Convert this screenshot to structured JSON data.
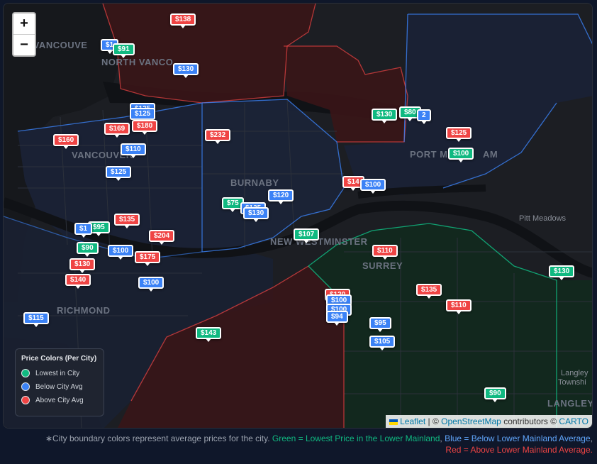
{
  "zoom": {
    "in_label": "+",
    "out_label": "−"
  },
  "places": [
    {
      "label": "WEST VANCOUVER",
      "text": "ST VANCOUVE"
    },
    {
      "label": "NORTH VANCOUVER",
      "text": "NORTH VANCO"
    },
    {
      "label": "VANCOUVER",
      "text": "VANCOUVER"
    },
    {
      "label": "BURNABY",
      "text": "BURNABY"
    },
    {
      "label": "PORT MOODY",
      "text": "PORT M"
    },
    {
      "label": "COQUITLAM",
      "text": "AM"
    },
    {
      "label": "NEW WESTMINSTER",
      "text": "NEW WESTMINSTER"
    },
    {
      "label": "SURREY",
      "text": "SURREY"
    },
    {
      "label": "RICHMOND",
      "text": "RICHMOND"
    },
    {
      "label": "Pitt Meadows",
      "text": "Pitt Meadows"
    },
    {
      "label": "Langley Township",
      "text": "Langley"
    },
    {
      "label": "Township",
      "text": "Townshi"
    },
    {
      "label": "LANGLEY",
      "text": "LANGLEY"
    }
  ],
  "markers": [
    {
      "price": "$138",
      "color": "red"
    },
    {
      "price": "$1",
      "color": "blue"
    },
    {
      "price": "$91",
      "color": "green"
    },
    {
      "price": "$130",
      "color": "blue"
    },
    {
      "price": "$125",
      "color": "blue"
    },
    {
      "price": "$125",
      "color": "blue"
    },
    {
      "price": "$169",
      "color": "red"
    },
    {
      "price": "$180",
      "color": "red"
    },
    {
      "price": "$160",
      "color": "red"
    },
    {
      "price": "$110",
      "color": "blue"
    },
    {
      "price": "$125",
      "color": "blue"
    },
    {
      "price": "$232",
      "color": "red"
    },
    {
      "price": "$130",
      "color": "green"
    },
    {
      "price": "$80",
      "color": "green"
    },
    {
      "price": "2",
      "color": "blue"
    },
    {
      "price": "$125",
      "color": "red"
    },
    {
      "price": "$100",
      "color": "green"
    },
    {
      "price": "$14",
      "color": "red"
    },
    {
      "price": "$100",
      "color": "blue"
    },
    {
      "price": "$120",
      "color": "blue"
    },
    {
      "price": "$75",
      "color": "green"
    },
    {
      "price": "$125",
      "color": "blue"
    },
    {
      "price": "$130",
      "color": "blue"
    },
    {
      "price": "$135",
      "color": "red"
    },
    {
      "price": "$95",
      "color": "green"
    },
    {
      "price": "$1",
      "color": "blue"
    },
    {
      "price": "$204",
      "color": "red"
    },
    {
      "price": "$107",
      "color": "green"
    },
    {
      "price": "$90",
      "color": "green"
    },
    {
      "price": "$100",
      "color": "blue"
    },
    {
      "price": "$175",
      "color": "red"
    },
    {
      "price": "$110",
      "color": "red"
    },
    {
      "price": "$130",
      "color": "red"
    },
    {
      "price": "$140",
      "color": "red"
    },
    {
      "price": "$100",
      "color": "blue"
    },
    {
      "price": "$130",
      "color": "green"
    },
    {
      "price": "$135",
      "color": "red"
    },
    {
      "price": "$120",
      "color": "red"
    },
    {
      "price": "$100",
      "color": "blue"
    },
    {
      "price": "$100",
      "color": "blue"
    },
    {
      "price": "$94",
      "color": "blue"
    },
    {
      "price": "$110",
      "color": "red"
    },
    {
      "price": "$115",
      "color": "blue"
    },
    {
      "price": "$95",
      "color": "blue"
    },
    {
      "price": "$143",
      "color": "green"
    },
    {
      "price": "$105",
      "color": "blue"
    },
    {
      "price": "$90",
      "color": "green"
    }
  ],
  "legend": {
    "title": "Price Colors (Per City)",
    "items": [
      {
        "label": "Lowest in City",
        "color": "#10b981"
      },
      {
        "label": "Below City Avg",
        "color": "#3b82f6"
      },
      {
        "label": "Above City Avg",
        "color": "#ef4444"
      }
    ]
  },
  "attribution": {
    "leaflet": "Leaflet",
    "sep": "| ©",
    "osm": "OpenStreetMap",
    "contributors": "contributors ©",
    "carto": "CARTO"
  },
  "footnote": {
    "lead": "∗City boundary colors represent average prices for the city.",
    "green": "Green = Lowest Price in the Lower Mainland",
    "comma1": ",",
    "blue": "Blue = Below Lower Mainland Average",
    "comma2": ",",
    "red": "Red = Above Lower Mainland Average."
  }
}
